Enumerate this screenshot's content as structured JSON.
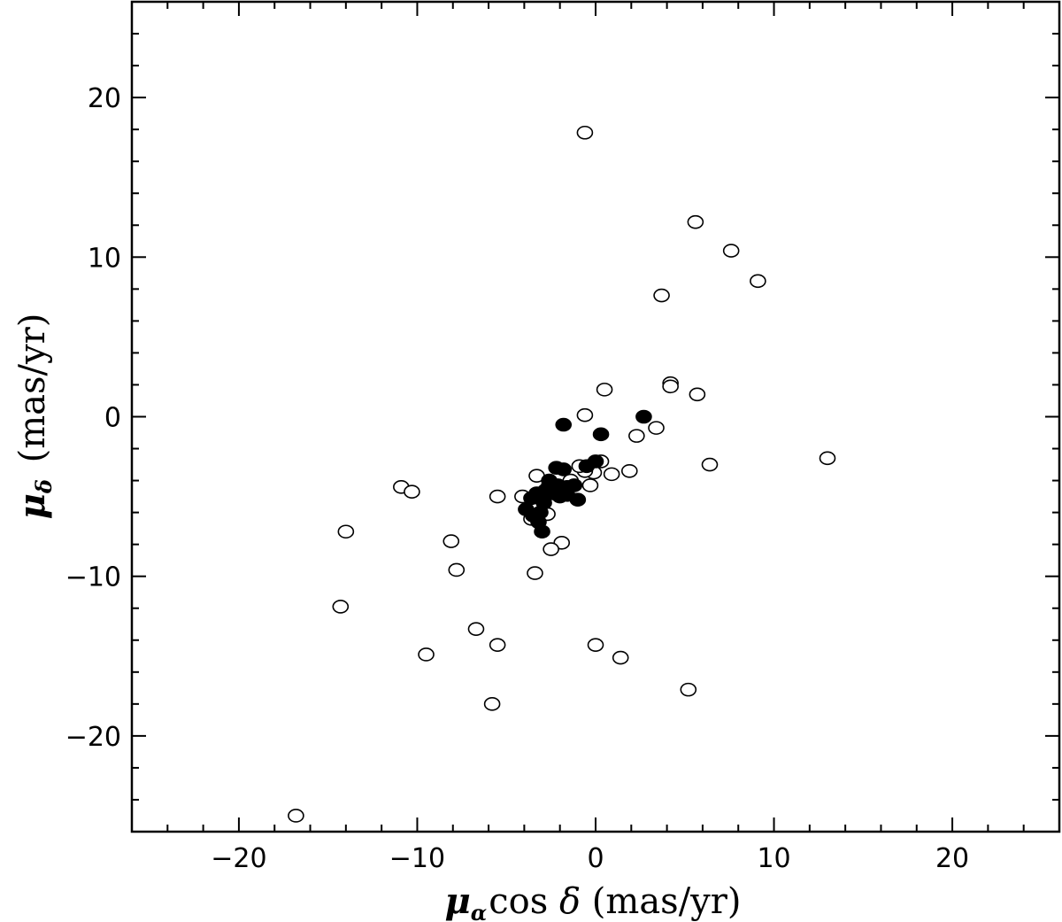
{
  "chart_data": {
    "type": "scatter",
    "title": "",
    "xlabel_parts": [
      "μ",
      "α",
      "cos ",
      "δ",
      " (mas/yr)"
    ],
    "ylabel_parts": [
      "μ",
      "δ",
      " (mas/yr)"
    ],
    "xlim": [
      -26,
      26
    ],
    "ylim": [
      -26,
      26
    ],
    "major_ticks": [
      -20,
      -10,
      0,
      10,
      20
    ],
    "minor_step": 2,
    "tick_labels": [
      "−20",
      "−10",
      "0",
      "10",
      "20"
    ],
    "grid": false,
    "legend": "none",
    "series": [
      {
        "marker": "open-circle",
        "points": [
          [
            -0.6,
            17.8
          ],
          [
            5.6,
            12.2
          ],
          [
            7.6,
            10.4
          ],
          [
            9.1,
            8.5
          ],
          [
            3.7,
            7.6
          ],
          [
            4.2,
            2.1
          ],
          [
            4.2,
            1.9
          ],
          [
            5.7,
            1.4
          ],
          [
            0.5,
            1.7
          ],
          [
            -0.6,
            0.1
          ],
          [
            3.4,
            -0.7
          ],
          [
            2.3,
            -1.2
          ],
          [
            13.0,
            -2.6
          ],
          [
            6.4,
            -3.0
          ],
          [
            1.9,
            -3.4
          ],
          [
            0.9,
            -3.6
          ],
          [
            0.3,
            -2.8
          ],
          [
            -0.1,
            -3.5
          ],
          [
            -0.6,
            -3.4
          ],
          [
            -0.9,
            -3.1
          ],
          [
            -0.3,
            -4.3
          ],
          [
            -1.4,
            -4.0
          ],
          [
            -3.3,
            -3.7
          ],
          [
            -2.6,
            -4.3
          ],
          [
            -4.1,
            -5.0
          ],
          [
            -5.5,
            -5.0
          ],
          [
            -10.9,
            -4.4
          ],
          [
            -10.3,
            -4.7
          ],
          [
            -3.6,
            -6.4
          ],
          [
            -2.7,
            -6.1
          ],
          [
            -1.9,
            -7.9
          ],
          [
            -2.5,
            -8.3
          ],
          [
            -8.1,
            -7.8
          ],
          [
            -7.8,
            -9.6
          ],
          [
            -14.0,
            -7.2
          ],
          [
            -3.4,
            -9.8
          ],
          [
            -14.3,
            -11.9
          ],
          [
            -6.7,
            -13.3
          ],
          [
            -9.5,
            -14.9
          ],
          [
            -5.5,
            -14.3
          ],
          [
            0.0,
            -14.3
          ],
          [
            1.4,
            -15.1
          ],
          [
            5.2,
            -17.1
          ],
          [
            -5.8,
            -18.0
          ],
          [
            -16.8,
            -25.0
          ]
        ]
      },
      {
        "marker": "filled-circle",
        "points": [
          [
            -1.8,
            -0.5
          ],
          [
            2.7,
            0.0
          ],
          [
            0.3,
            -1.1
          ],
          [
            -2.2,
            -3.2
          ],
          [
            -1.8,
            -3.3
          ],
          [
            0.0,
            -2.8
          ],
          [
            -0.5,
            -3.1
          ],
          [
            -2.6,
            -4.0
          ],
          [
            -2.1,
            -4.3
          ],
          [
            -1.6,
            -4.4
          ],
          [
            -1.2,
            -4.3
          ],
          [
            -2.8,
            -4.6
          ],
          [
            -3.3,
            -4.8
          ],
          [
            -2.0,
            -5.0
          ],
          [
            -1.0,
            -5.2
          ],
          [
            -3.6,
            -5.1
          ],
          [
            -2.9,
            -5.4
          ],
          [
            -3.9,
            -5.8
          ],
          [
            -3.1,
            -6.0
          ],
          [
            -3.5,
            -6.2
          ],
          [
            -3.2,
            -6.6
          ],
          [
            -3.0,
            -7.2
          ],
          [
            -2.4,
            -4.8
          ],
          [
            -1.6,
            -4.9
          ]
        ]
      }
    ]
  }
}
